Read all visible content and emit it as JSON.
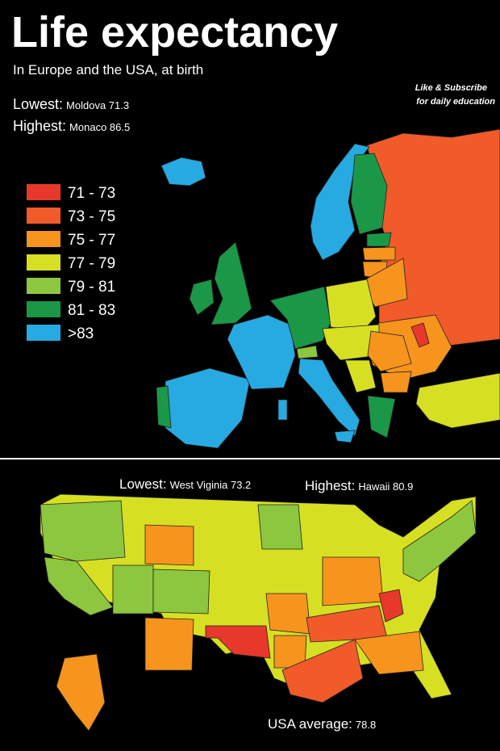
{
  "header": {
    "title": "Life expectancy",
    "subtitle": "In Europe and the USA, at birth"
  },
  "europe": {
    "lowest": {
      "label": "Lowest:",
      "value": "Moldova 71.3"
    },
    "highest": {
      "label": "Highest:",
      "value": "Monaco 86.5"
    },
    "promo": [
      "Like & Subscribe",
      "for daily education"
    ],
    "legend": [
      {
        "label": "71 - 73",
        "color": "#e8382b"
      },
      {
        "label": "73 - 75",
        "color": "#f15a29"
      },
      {
        "label": "75 - 77",
        "color": "#f7941d"
      },
      {
        "label": "77 - 79",
        "color": "#d7df23"
      },
      {
        "label": "79 - 81",
        "color": "#8dc63f"
      },
      {
        "label": "81 - 83",
        "color": "#1a9848"
      },
      {
        "label": ">83",
        "color": "#27aae1"
      }
    ]
  },
  "usa": {
    "lowest": {
      "label": "Lowest:",
      "value": "West Viginia 73.2"
    },
    "highest": {
      "label": "Highest:",
      "value": "Hawaii 80.9"
    },
    "average": {
      "label": "USA average:",
      "value": "78.8"
    }
  }
}
